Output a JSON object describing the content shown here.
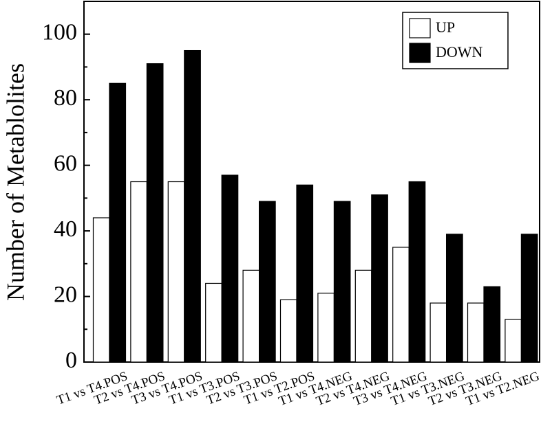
{
  "chart_data": {
    "type": "bar",
    "ylabel": "Number of Metablolites",
    "categories": [
      "T1 vs T4.POS",
      "T2 vs T4.POS",
      "T3 vs T4.POS",
      "T1 vs T3.POS",
      "T2 vs T3.POS",
      "T1 vs T2.POS",
      "T1 vs T4.NEG",
      "T2 vs T4.NEG",
      "T3 vs T4.NEG",
      "T1 vs T3.NEG",
      "T2 vs T3.NEG",
      "T1 vs T2.NEG"
    ],
    "series": [
      {
        "name": "UP",
        "color": "#ffffff",
        "values": [
          44,
          55,
          55,
          24,
          28,
          19,
          21,
          28,
          35,
          18,
          18,
          13
        ]
      },
      {
        "name": "DOWN",
        "color": "#000000",
        "values": [
          85,
          91,
          95,
          57,
          49,
          54,
          49,
          51,
          55,
          39,
          23,
          39
        ]
      }
    ],
    "ylim": [
      0,
      110
    ],
    "yticks": [
      0,
      20,
      40,
      60,
      80,
      100
    ],
    "minor_yticks": [
      10,
      30,
      50,
      70,
      90
    ],
    "legend": "upper right"
  }
}
